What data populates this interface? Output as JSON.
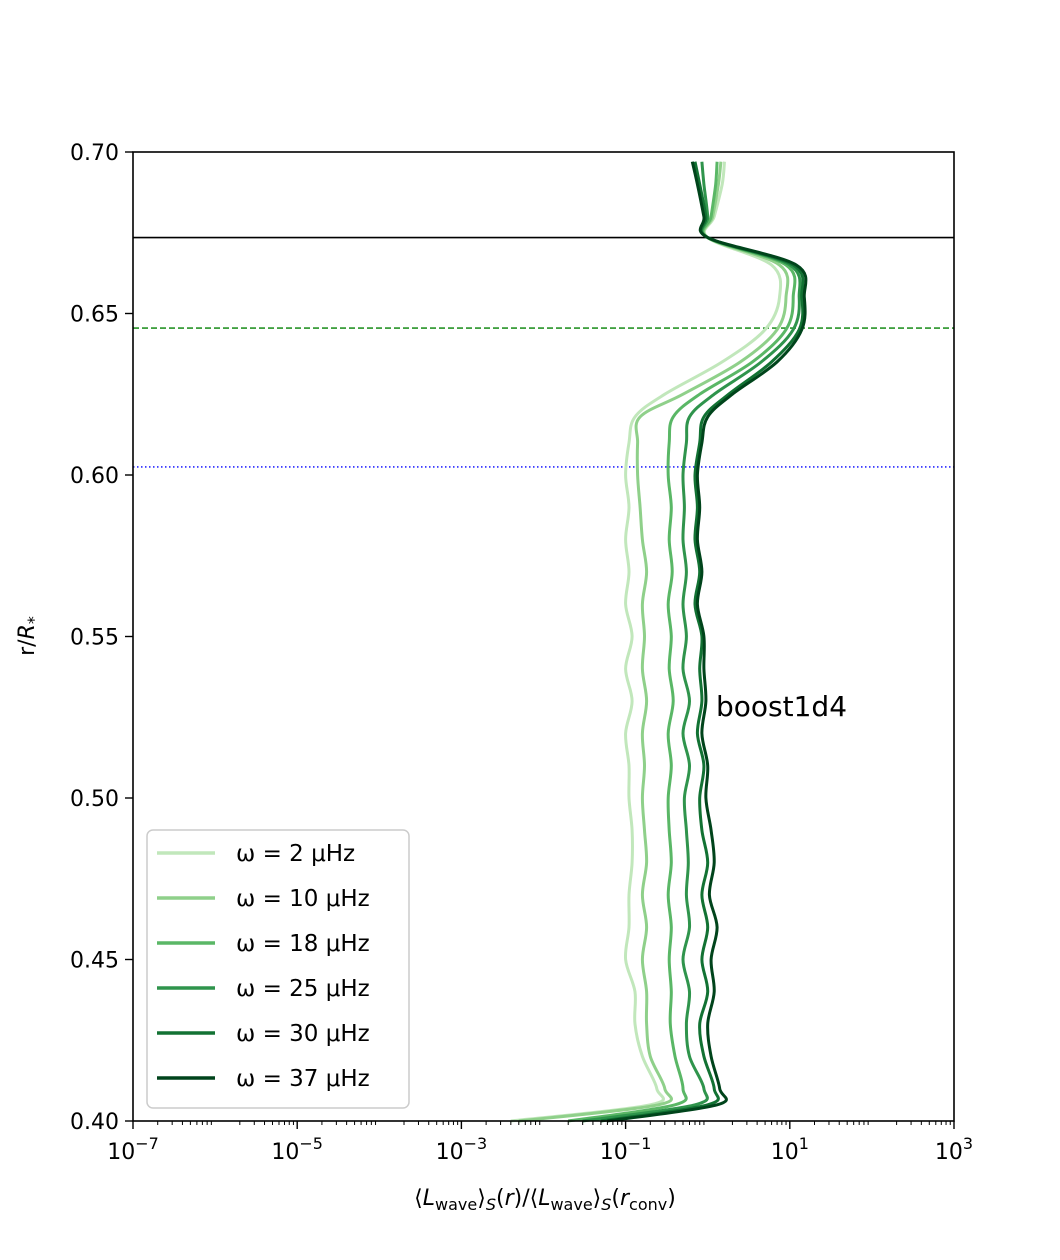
{
  "chart_data": {
    "type": "line",
    "title": "",
    "xlabel": "⟨L_wave⟩_S(r)/⟨L_wave⟩_S(r_conv)",
    "ylabel": "r/R*",
    "x_scale": "log",
    "xlim": [
      1e-07,
      1000
    ],
    "ylim": [
      0.4,
      0.7
    ],
    "x_ticks": [
      {
        "value": 1e-07,
        "base": "10",
        "exp": "−7"
      },
      {
        "value": 1e-05,
        "base": "10",
        "exp": "−5"
      },
      {
        "value": 0.001,
        "base": "10",
        "exp": "−3"
      },
      {
        "value": 0.1,
        "base": "10",
        "exp": "−1"
      },
      {
        "value": 10,
        "base": "10",
        "exp": "1"
      },
      {
        "value": 1000,
        "base": "10",
        "exp": "3"
      }
    ],
    "y_ticks": [
      "0.40",
      "0.45",
      "0.50",
      "0.55",
      "0.60",
      "0.65",
      "0.70"
    ],
    "grid": false,
    "legend_position": "lower-left",
    "annotation": "boost1d4",
    "hlines": [
      {
        "y": 0.6735,
        "style": "solid",
        "color": "#000000"
      },
      {
        "y": 0.6455,
        "style": "dashed",
        "color": "#008000"
      },
      {
        "y": 0.6025,
        "style": "dotted",
        "color": "#0000ff"
      }
    ],
    "y": [
      0.4,
      0.405,
      0.41,
      0.42,
      0.43,
      0.44,
      0.45,
      0.46,
      0.47,
      0.48,
      0.49,
      0.5,
      0.51,
      0.52,
      0.53,
      0.54,
      0.55,
      0.56,
      0.57,
      0.58,
      0.59,
      0.6,
      0.61,
      0.618,
      0.625,
      0.635,
      0.645,
      0.655,
      0.665,
      0.6735,
      0.68,
      0.69,
      0.697
    ],
    "series": [
      {
        "name": "ω = 2 μHz",
        "color": "#c1e7bb",
        "x": [
          0.004,
          0.2,
          0.24,
          0.16,
          0.13,
          0.13,
          0.1,
          0.11,
          0.11,
          0.12,
          0.12,
          0.11,
          0.11,
          0.1,
          0.12,
          0.1,
          0.12,
          0.1,
          0.11,
          0.1,
          0.11,
          0.1,
          0.11,
          0.13,
          0.3,
          1.5,
          5.0,
          7.5,
          6.0,
          1.0,
          1.2,
          1.5,
          1.6
        ]
      },
      {
        "name": "ω = 10 μHz",
        "color": "#8fd08a",
        "x": [
          0.005,
          0.25,
          0.3,
          0.2,
          0.18,
          0.18,
          0.16,
          0.18,
          0.16,
          0.18,
          0.17,
          0.16,
          0.17,
          0.16,
          0.18,
          0.16,
          0.17,
          0.16,
          0.18,
          0.16,
          0.15,
          0.14,
          0.14,
          0.15,
          0.5,
          2.5,
          7.0,
          9.0,
          7.5,
          1.0,
          1.15,
          1.35,
          1.45
        ]
      },
      {
        "name": "ω = 18 μHz",
        "color": "#5ab766",
        "x": [
          0.02,
          0.4,
          0.5,
          0.4,
          0.35,
          0.36,
          0.34,
          0.36,
          0.33,
          0.36,
          0.34,
          0.33,
          0.36,
          0.33,
          0.38,
          0.34,
          0.36,
          0.33,
          0.37,
          0.34,
          0.36,
          0.33,
          0.34,
          0.38,
          0.8,
          3.5,
          9.0,
          11.0,
          9.0,
          1.0,
          1.1,
          1.25,
          1.3
        ]
      },
      {
        "name": "ω = 25 μHz",
        "color": "#2f944c",
        "x": [
          0.03,
          0.7,
          0.9,
          0.6,
          0.55,
          0.6,
          0.5,
          0.6,
          0.55,
          0.58,
          0.55,
          0.52,
          0.6,
          0.5,
          0.6,
          0.5,
          0.55,
          0.5,
          0.55,
          0.5,
          0.52,
          0.5,
          0.55,
          0.6,
          1.2,
          4.5,
          11.0,
          13.0,
          10.0,
          1.0,
          1.0,
          0.9,
          0.85
        ]
      },
      {
        "name": "ω = 30 μHz",
        "color": "#127233",
        "x": [
          0.05,
          1.0,
          1.2,
          0.9,
          0.8,
          1.0,
          0.85,
          1.0,
          0.85,
          1.0,
          0.85,
          0.8,
          0.9,
          0.75,
          0.85,
          0.8,
          0.85,
          0.7,
          0.8,
          0.7,
          0.75,
          0.7,
          0.8,
          0.9,
          1.8,
          6.0,
          13.0,
          14.0,
          11.0,
          1.0,
          0.95,
          0.8,
          0.7
        ]
      },
      {
        "name": "ω = 37 μHz",
        "color": "#00441b",
        "x": [
          0.06,
          1.3,
          1.4,
          1.1,
          1.0,
          1.2,
          1.1,
          1.3,
          1.05,
          1.2,
          1.1,
          0.95,
          1.0,
          0.85,
          0.95,
          0.9,
          0.9,
          0.75,
          0.85,
          0.75,
          0.8,
          0.75,
          0.85,
          1.0,
          2.0,
          7.0,
          14.0,
          15.0,
          12.0,
          1.0,
          0.9,
          0.75,
          0.65
        ]
      }
    ]
  }
}
